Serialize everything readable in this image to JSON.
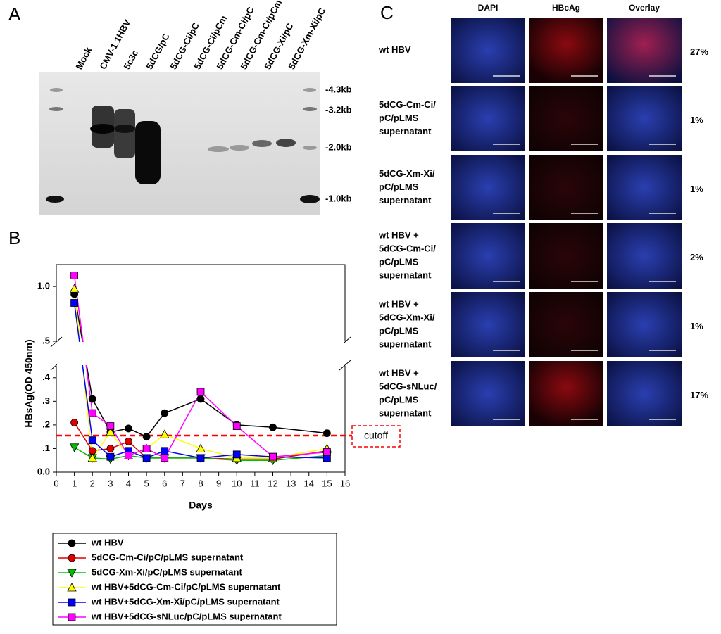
{
  "panels": {
    "a": "A",
    "b": "B",
    "c": "C"
  },
  "blot": {
    "lanes": [
      "Mock",
      "CMV-1.1HBV",
      "5c3c",
      "5dCG/pC",
      "5dCG-Ci/pC",
      "5dCG-Ci/pCm",
      "5dCG-Cm-Ci/pC",
      "5dCG-Cm-Ci/pCm",
      "5dCG-Xi/pC",
      "5dCG-Xm-Xi/pC"
    ],
    "size_markers": [
      "-4.3kb",
      "-3.2kb",
      "-2.0kb",
      "-1.0kb"
    ]
  },
  "chart_data": {
    "type": "line",
    "y_label": "HBsAg(OD 450nm)",
    "x_label": "Days",
    "x": [
      1,
      2,
      3,
      4,
      5,
      6,
      8,
      10,
      12,
      15
    ],
    "xlim": [
      0,
      16
    ],
    "xticks": [
      0,
      1,
      2,
      3,
      4,
      5,
      6,
      7,
      8,
      9,
      10,
      11,
      12,
      13,
      14,
      15,
      16
    ],
    "ylim": [
      0,
      1.2
    ],
    "ybreak": [
      0.45,
      0.5
    ],
    "yticks": [
      {
        "value": 0,
        "label": "0.0"
      },
      {
        "value": 0.1,
        "label": ".1"
      },
      {
        "value": 0.2,
        "label": ".2"
      },
      {
        "value": 0.3,
        "label": ".3"
      },
      {
        "value": 0.4,
        "label": ".4"
      },
      {
        "value": 0.5,
        "label": ".5"
      },
      {
        "value": 1.0,
        "label": "1.0"
      }
    ],
    "cutoff": {
      "value": 0.155,
      "label": "cutoff",
      "color": "#ff0000"
    },
    "series": [
      {
        "name": "wt HBV",
        "color": "#000000",
        "marker": "circle",
        "values": [
          0.93,
          0.31,
          0.17,
          0.185,
          0.15,
          0.25,
          0.31,
          0.2,
          0.19,
          0.165
        ]
      },
      {
        "name": "5dCG-Cm-Ci/pC/pLMS supernatant",
        "color": "#e00000",
        "marker": "circle",
        "values": [
          0.21,
          0.09,
          0.1,
          0.13,
          0.06,
          0.06,
          0.06,
          0.055,
          0.055,
          0.09
        ]
      },
      {
        "name": "5dCG-Xm-Xi/pC/pLMS supernatant",
        "color": "#00c000",
        "marker": "triangle-down",
        "values": [
          0.105,
          0.06,
          0.055,
          0.07,
          0.06,
          0.06,
          0.06,
          0.05,
          0.05,
          0.07
        ]
      },
      {
        "name": "wt HBV+5dCG-Cm-Ci/pC/pLMS supernatant",
        "color": "#ffff00",
        "marker": "triangle-up",
        "values": [
          0.98,
          0.06,
          0.17,
          0.07,
          0.1,
          0.16,
          0.1,
          0.06,
          0.06,
          0.1
        ]
      },
      {
        "name": "wt HBV+5dCG-Xm-Xi/pC/pLMS supernatant",
        "color": "#0000ff",
        "marker": "square",
        "values": [
          0.85,
          0.135,
          0.065,
          0.09,
          0.06,
          0.09,
          0.06,
          0.075,
          0.065,
          0.06
        ]
      },
      {
        "name": "wt HBV+5dCG-sNLuc/pC/pLMS supernatant",
        "color": "#ff00ff",
        "marker": "square",
        "values": [
          1.1,
          0.25,
          0.195,
          0.07,
          0.1,
          0.06,
          0.34,
          0.195,
          0.065,
          0.085
        ]
      }
    ]
  },
  "microscopy": {
    "columns": [
      "DAPI",
      "HBcAg",
      "Overlay"
    ],
    "rows": [
      {
        "label": [
          "wt HBV"
        ],
        "percent": "27%"
      },
      {
        "label": [
          "5dCG-Cm-Ci/",
          "pC/pLMS",
          "supernatant"
        ],
        "percent": "1%"
      },
      {
        "label": [
          "5dCG-Xm-Xi/",
          "pC/pLMS",
          "supernatant"
        ],
        "percent": "1%"
      },
      {
        "label": [
          "wt HBV +",
          "5dCG-Cm-Ci/",
          "pC/pLMS",
          "supernatant"
        ],
        "percent": "2%"
      },
      {
        "label": [
          "wt HBV +",
          "5dCG-Xm-Xi/",
          "pC/pLMS",
          "supernatant"
        ],
        "percent": "1%"
      },
      {
        "label": [
          "wt HBV +",
          "5dCG-sNLuc/",
          "pC/pLMS",
          "supernatant"
        ],
        "percent": "17%"
      }
    ]
  }
}
